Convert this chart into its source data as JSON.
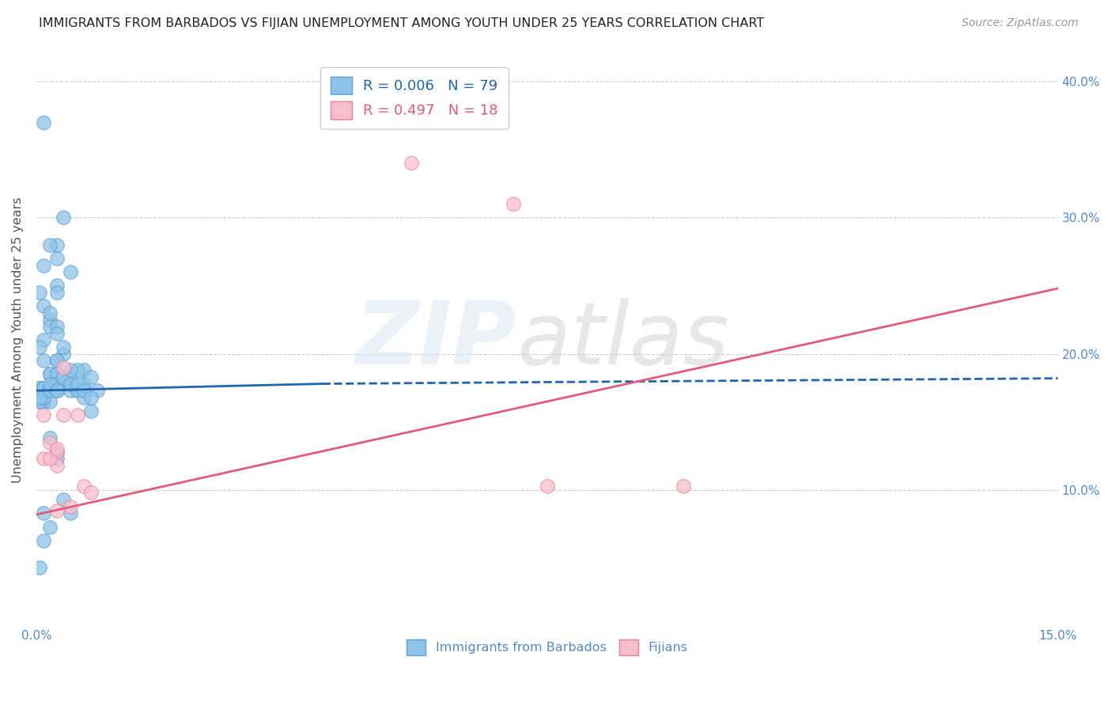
{
  "title": "IMMIGRANTS FROM BARBADOS VS FIJIAN UNEMPLOYMENT AMONG YOUTH UNDER 25 YEARS CORRELATION CHART",
  "source": "Source: ZipAtlas.com",
  "ylabel": "Unemployment Among Youth under 25 years",
  "xlim": [
    0.0,
    0.15
  ],
  "ylim": [
    0.0,
    0.42
  ],
  "xticks": [
    0.0,
    0.15
  ],
  "xticklabels": [
    "0.0%",
    "15.0%"
  ],
  "yticks_left": [],
  "yticks_right": [
    0.1,
    0.2,
    0.3,
    0.4
  ],
  "yticklabels_right": [
    "10.0%",
    "20.0%",
    "30.0%",
    "40.0%"
  ],
  "legend_entry1": "R = 0.006   N = 79",
  "legend_entry2": "R = 0.497   N = 18",
  "legend_label1": "Immigrants from Barbados",
  "legend_label2": "Fijians",
  "blue_color": "#8ec4e8",
  "blue_edge_color": "#5a9fd4",
  "blue_line_color": "#2166ac",
  "pink_color": "#f7bfcc",
  "pink_edge_color": "#e88098",
  "pink_line_color": "#e05c7a",
  "axis_label_color": "#5588cc",
  "grid_color": "#cccccc",
  "barbados_x": [
    0.001,
    0.004,
    0.003,
    0.003,
    0.005,
    0.002,
    0.001,
    0.0005,
    0.001,
    0.002,
    0.003,
    0.003,
    0.002,
    0.001,
    0.0005,
    0.002,
    0.003,
    0.003,
    0.004,
    0.001,
    0.0005,
    0.002,
    0.001,
    0.003,
    0.003,
    0.002,
    0.001,
    0.004,
    0.003,
    0.002,
    0.001,
    0.0005,
    0.002,
    0.003,
    0.003,
    0.001,
    0.0005,
    0.002,
    0.001,
    0.0005,
    0.001,
    0.002,
    0.002,
    0.003,
    0.002,
    0.001,
    0.0005,
    0.002,
    0.002,
    0.003,
    0.004,
    0.005,
    0.005,
    0.006,
    0.007,
    0.005,
    0.006,
    0.006,
    0.007,
    0.007,
    0.008,
    0.009,
    0.003,
    0.004,
    0.005,
    0.005,
    0.006,
    0.007,
    0.008,
    0.008,
    0.002,
    0.003,
    0.003,
    0.004,
    0.005,
    0.002,
    0.001,
    0.0005,
    0.001
  ],
  "barbados_y": [
    0.37,
    0.3,
    0.28,
    0.27,
    0.26,
    0.28,
    0.265,
    0.245,
    0.235,
    0.225,
    0.25,
    0.245,
    0.22,
    0.21,
    0.205,
    0.23,
    0.22,
    0.215,
    0.2,
    0.195,
    0.175,
    0.185,
    0.175,
    0.195,
    0.185,
    0.175,
    0.165,
    0.205,
    0.195,
    0.185,
    0.175,
    0.165,
    0.175,
    0.185,
    0.175,
    0.165,
    0.175,
    0.165,
    0.175,
    0.165,
    0.175,
    0.175,
    0.175,
    0.178,
    0.175,
    0.168,
    0.168,
    0.173,
    0.178,
    0.173,
    0.178,
    0.173,
    0.183,
    0.173,
    0.188,
    0.178,
    0.173,
    0.188,
    0.178,
    0.168,
    0.158,
    0.173,
    0.173,
    0.183,
    0.188,
    0.178,
    0.178,
    0.173,
    0.168,
    0.183,
    0.138,
    0.128,
    0.123,
    0.093,
    0.083,
    0.073,
    0.063,
    0.043,
    0.083
  ],
  "fijian_x": [
    0.001,
    0.002,
    0.003,
    0.001,
    0.003,
    0.004,
    0.002,
    0.003,
    0.004,
    0.006,
    0.003,
    0.005,
    0.007,
    0.008,
    0.055,
    0.07,
    0.075,
    0.095
  ],
  "fijian_y": [
    0.155,
    0.135,
    0.128,
    0.123,
    0.118,
    0.155,
    0.123,
    0.13,
    0.19,
    0.155,
    0.085,
    0.088,
    0.103,
    0.098,
    0.34,
    0.31,
    0.103,
    0.103
  ],
  "blue_trend_x0": 0.0,
  "blue_trend_x1": 0.042,
  "blue_trend_x2": 0.15,
  "blue_trend_y0": 0.173,
  "blue_trend_y1": 0.178,
  "blue_trend_y2": 0.182,
  "pink_trend_x0": 0.0,
  "pink_trend_x1": 0.15,
  "pink_trend_y0": 0.082,
  "pink_trend_y1": 0.248
}
